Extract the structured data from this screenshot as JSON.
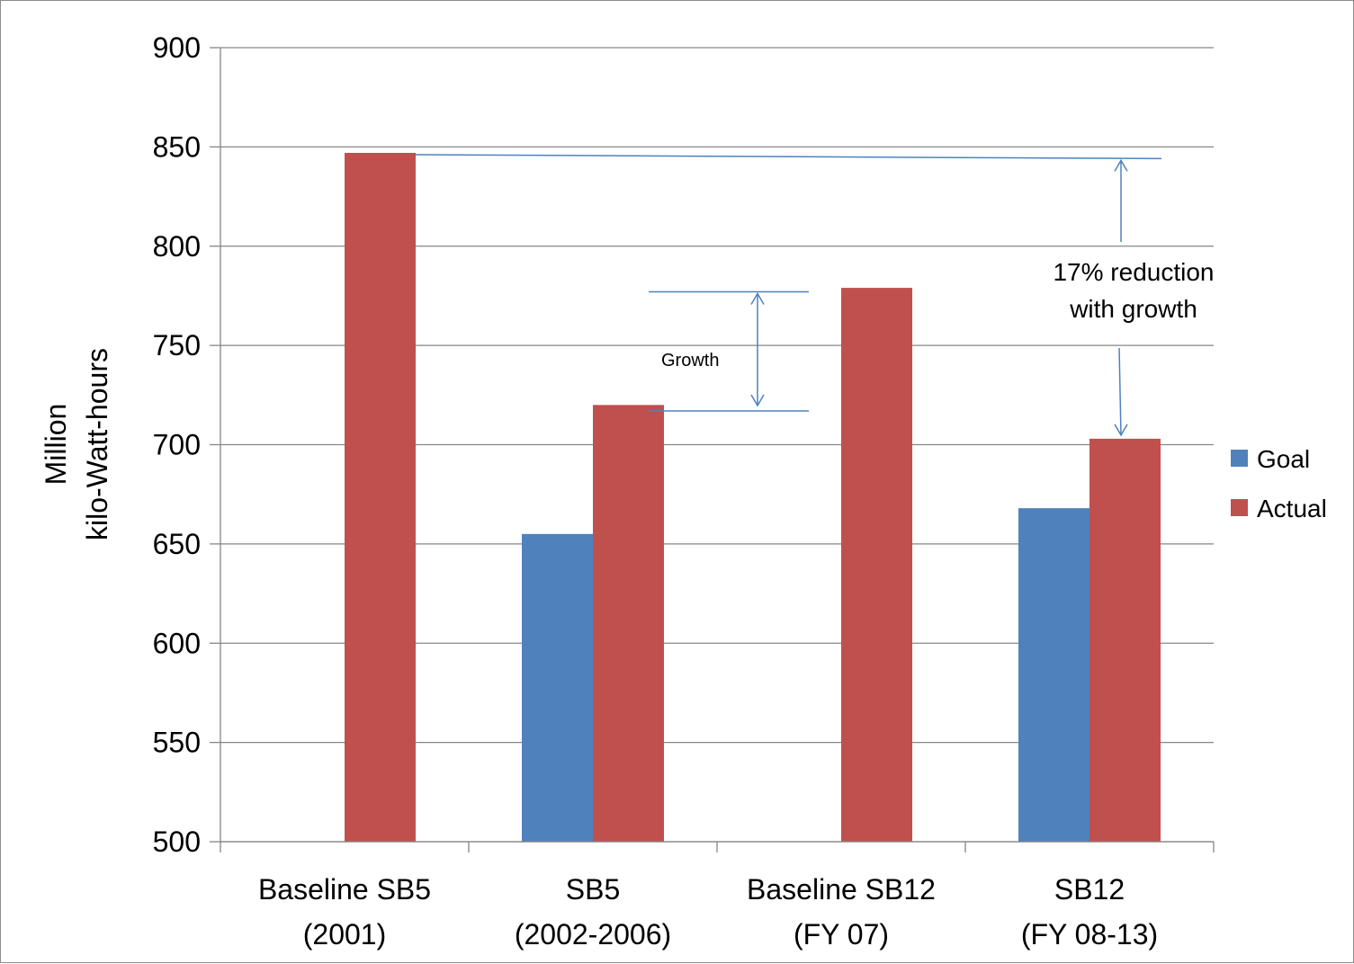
{
  "chart_data": {
    "type": "bar",
    "title": "",
    "xlabel": "",
    "ylabel_lines": [
      "Million",
      "kilo-Watt-hours"
    ],
    "ylim": [
      500,
      900
    ],
    "yticks": [
      500,
      550,
      600,
      650,
      700,
      750,
      800,
      850,
      900
    ],
    "categories": [
      [
        "Baseline SB5",
        "(2001)"
      ],
      [
        "SB5",
        "(2002-2006)"
      ],
      [
        "Baseline SB12",
        "(FY 07)"
      ],
      [
        "SB12",
        "(FY 08-13)"
      ]
    ],
    "series": [
      {
        "name": "Goal",
        "color": "#4f81bd",
        "values": [
          500,
          655,
          500,
          668
        ]
      },
      {
        "name": "Actual",
        "color": "#c0504d",
        "values": [
          847,
          720,
          779,
          703
        ]
      }
    ],
    "grid": true,
    "legend_position": "right",
    "annotations": {
      "growth": {
        "text": "Growth",
        "from": 717,
        "to": 777,
        "color": "#4f81bd"
      },
      "reduction": {
        "lines": [
          "17% reduction",
          "with growth"
        ],
        "from": 845,
        "to": 703,
        "color": "#4f81bd"
      }
    }
  }
}
